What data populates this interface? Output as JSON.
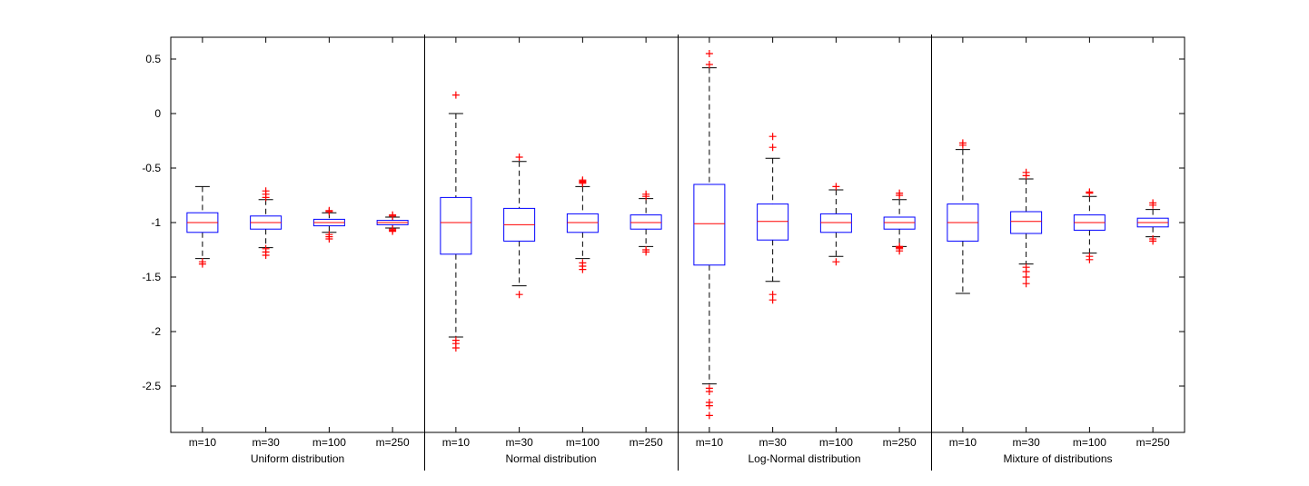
{
  "chart_data": {
    "type": "boxplot",
    "title": "",
    "ylim": [
      -2.9,
      0.7
    ],
    "y_ticks": [
      "0.5",
      "0",
      "-0.5",
      "-1",
      "-1.5",
      "-2",
      "-2.5"
    ],
    "y_tick_values": [
      0.5,
      0,
      -0.5,
      -1,
      -1.5,
      -2,
      -2.5
    ],
    "categories": [
      "m=10",
      "m=30",
      "m=100",
      "m=250"
    ],
    "colors": {
      "box": "#0000ff",
      "median": "#ff0000",
      "whisker": "#000000",
      "outlier": "#ff0000"
    },
    "groups": [
      {
        "name": "Uniform distribution",
        "boxes": [
          {
            "label": "m=10",
            "q1": -1.09,
            "median": -1.0,
            "q3": -0.91,
            "lw": -1.33,
            "uw": -0.67,
            "outliers": [
              -1.36,
              -1.38
            ]
          },
          {
            "label": "m=30",
            "q1": -1.06,
            "median": -1.0,
            "q3": -0.94,
            "lw": -1.23,
            "uw": -0.79,
            "outliers": [
              -0.71,
              -0.74,
              -0.77,
              -1.24,
              -1.27,
              -1.3
            ]
          },
          {
            "label": "m=100",
            "q1": -1.03,
            "median": -1.0,
            "q3": -0.97,
            "lw": -1.09,
            "uw": -0.91,
            "outliers": [
              -0.89,
              -0.9,
              -1.11,
              -1.13,
              -1.15
            ]
          },
          {
            "label": "m=250",
            "q1": -1.02,
            "median": -1.0,
            "q3": -0.98,
            "lw": -1.05,
            "uw": -0.95,
            "outliers": [
              -0.93,
              -0.94,
              -1.06,
              -1.07,
              -1.08
            ]
          }
        ]
      },
      {
        "name": "Normal distribution",
        "boxes": [
          {
            "label": "m=10",
            "q1": -1.29,
            "median": -1.0,
            "q3": -0.77,
            "lw": -2.05,
            "uw": 0.0,
            "outliers": [
              0.17,
              -2.08,
              -2.11,
              -2.15
            ]
          },
          {
            "label": "m=30",
            "q1": -1.17,
            "median": -1.02,
            "q3": -0.87,
            "lw": -1.58,
            "uw": -0.44,
            "outliers": [
              -0.4,
              -1.66
            ]
          },
          {
            "label": "m=100",
            "q1": -1.09,
            "median": -1.0,
            "q3": -0.92,
            "lw": -1.33,
            "uw": -0.67,
            "outliers": [
              -0.61,
              -0.62,
              -0.63,
              -0.64,
              -1.37,
              -1.4,
              -1.43
            ]
          },
          {
            "label": "m=250",
            "q1": -1.06,
            "median": -1.0,
            "q3": -0.93,
            "lw": -1.22,
            "uw": -0.78,
            "outliers": [
              -0.74,
              -0.76,
              -1.25,
              -1.27
            ]
          }
        ]
      },
      {
        "name": "Log-Normal distribution",
        "boxes": [
          {
            "label": "m=10",
            "q1": -1.39,
            "median": -1.01,
            "q3": -0.65,
            "lw": -2.48,
            "uw": 0.42,
            "outliers": [
              0.55,
              0.45,
              -2.52,
              -2.55,
              -2.65,
              -2.68,
              -2.77
            ]
          },
          {
            "label": "m=30",
            "q1": -1.16,
            "median": -0.99,
            "q3": -0.83,
            "lw": -1.54,
            "uw": -0.41,
            "outliers": [
              -0.21,
              -0.31,
              -1.66,
              -1.71
            ]
          },
          {
            "label": "m=100",
            "q1": -1.09,
            "median": -1.0,
            "q3": -0.92,
            "lw": -1.31,
            "uw": -0.7,
            "outliers": [
              -0.67,
              -1.36
            ]
          },
          {
            "label": "m=250",
            "q1": -1.06,
            "median": -1.0,
            "q3": -0.95,
            "lw": -1.22,
            "uw": -0.79,
            "outliers": [
              -0.73,
              -0.75,
              -1.22,
              -1.23,
              -1.24,
              -1.26
            ]
          }
        ]
      },
      {
        "name": "Mixture of distributions",
        "boxes": [
          {
            "label": "m=10",
            "q1": -1.17,
            "median": -1.0,
            "q3": -0.83,
            "lw": -1.65,
            "uw": -0.33,
            "outliers": [
              -0.27,
              -0.29
            ]
          },
          {
            "label": "m=30",
            "q1": -1.1,
            "median": -0.99,
            "q3": -0.9,
            "lw": -1.38,
            "uw": -0.6,
            "outliers": [
              -0.54,
              -0.57,
              -1.41,
              -1.45,
              -1.5,
              -1.56
            ]
          },
          {
            "label": "m=100",
            "q1": -1.07,
            "median": -1.0,
            "q3": -0.93,
            "lw": -1.28,
            "uw": -0.76,
            "outliers": [
              -0.72,
              -0.73,
              -1.31,
              -1.34
            ]
          },
          {
            "label": "m=250",
            "q1": -1.04,
            "median": -1.0,
            "q3": -0.96,
            "lw": -1.13,
            "uw": -0.88,
            "outliers": [
              -0.82,
              -0.84,
              -1.15,
              -1.17
            ]
          }
        ]
      }
    ]
  }
}
